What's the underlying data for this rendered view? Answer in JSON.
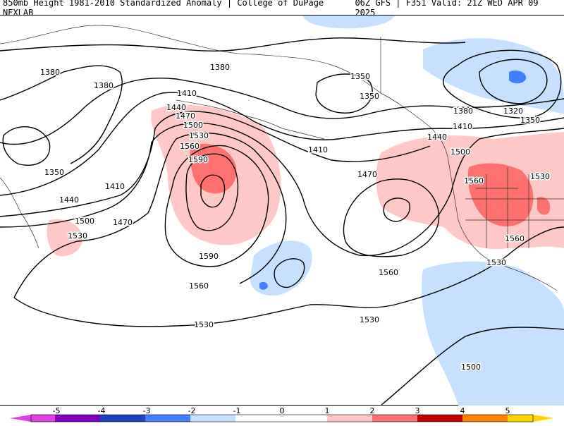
{
  "header": {
    "title": "850mb Height 1981-2010 Standardized Anomaly | College of DuPage NEXLAB",
    "run_info": "06Z GFS | F351 Valid: 21Z WED APR 09 2025"
  },
  "colors": {
    "neg5": "#e040e0",
    "neg4": "#8000c0",
    "neg3": "#2040c0",
    "neg2": "#4080ff",
    "neg1": "#c8e0ff",
    "pos1": "#ffc8c8",
    "pos2": "#ff7070",
    "pos3": "#c00000",
    "pos4": "#ff8000",
    "pos5": "#ffd700",
    "contour": "#000000",
    "coast": "#333333"
  },
  "contour_labels": [
    {
      "text": "1380"
    },
    {
      "text": "1380"
    },
    {
      "text": "1380"
    },
    {
      "text": "1380"
    },
    {
      "text": "1350"
    },
    {
      "text": "1350"
    },
    {
      "text": "1350"
    },
    {
      "text": "1350"
    },
    {
      "text": "1320"
    },
    {
      "text": "1410"
    },
    {
      "text": "1410"
    },
    {
      "text": "1410"
    },
    {
      "text": "1410"
    },
    {
      "text": "1440"
    },
    {
      "text": "1440"
    },
    {
      "text": "1440"
    },
    {
      "text": "1470"
    },
    {
      "text": "1470"
    },
    {
      "text": "1470"
    },
    {
      "text": "1500"
    },
    {
      "text": "1500"
    },
    {
      "text": "1500"
    },
    {
      "text": "1500"
    },
    {
      "text": "1530"
    },
    {
      "text": "1530"
    },
    {
      "text": "1530"
    },
    {
      "text": "1530"
    },
    {
      "text": "1530"
    },
    {
      "text": "1530"
    },
    {
      "text": "1560"
    },
    {
      "text": "1560"
    },
    {
      "text": "1560"
    },
    {
      "text": "1560"
    },
    {
      "text": "1560"
    },
    {
      "text": "1590"
    },
    {
      "text": "1590"
    }
  ],
  "legend": {
    "ticks": [
      "-5",
      "-4",
      "-3",
      "-2",
      "-1",
      "0",
      "1",
      "2",
      "3",
      "4",
      "5"
    ]
  }
}
